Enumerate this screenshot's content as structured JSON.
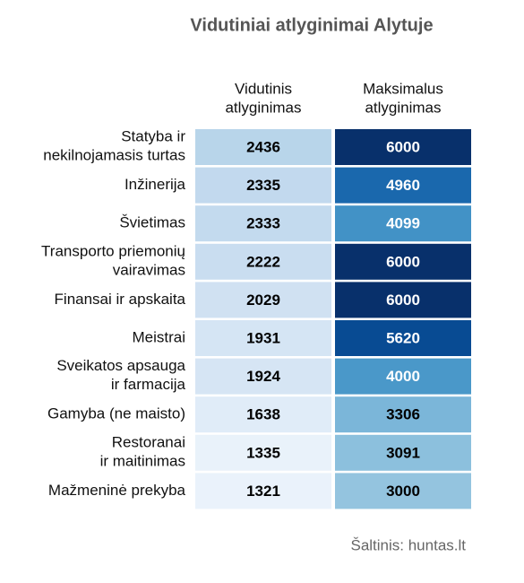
{
  "chart_data": {
    "type": "heatmap",
    "title": "Vidutiniai atlyginimai Alytuje",
    "columns": [
      "Vidutinis\natlyginimas",
      "Maksimalus\natlyginimas"
    ],
    "rows": [
      "Statyba ir\nnekilnojamasis turtas",
      "Inžinerija",
      "Švietimas",
      "Transporto priemonių\nvairavimas",
      "Finansai ir apskaita",
      "Meistrai",
      "Sveikatos apsauga\nir farmacija",
      "Gamyba (ne maisto)",
      "Restoranai\nir maitinimas",
      "Mažmeninė prekyba"
    ],
    "values": [
      [
        2436,
        6000
      ],
      [
        2335,
        4960
      ],
      [
        2333,
        4099
      ],
      [
        2222,
        6000
      ],
      [
        2029,
        6000
      ],
      [
        1931,
        5620
      ],
      [
        1924,
        4000
      ],
      [
        1638,
        3306
      ],
      [
        1335,
        3091
      ],
      [
        1321,
        3000
      ]
    ],
    "colors": [
      [
        "#b8d5ea",
        "#08306b"
      ],
      [
        "#c2d9ee",
        "#1a68ad"
      ],
      [
        "#c3daee",
        "#4292c6"
      ],
      [
        "#c9ddf0",
        "#08306b"
      ],
      [
        "#d0e1f2",
        "#08306b"
      ],
      [
        "#d5e5f4",
        "#084b93"
      ],
      [
        "#d6e5f4",
        "#4a98c9"
      ],
      [
        "#e0ecf8",
        "#7bb6d9"
      ],
      [
        "#e9f2fa",
        "#8cc0dd"
      ],
      [
        "#eaf2fb",
        "#94c4df"
      ]
    ],
    "source": "Šaltinis: huntas.lt"
  }
}
